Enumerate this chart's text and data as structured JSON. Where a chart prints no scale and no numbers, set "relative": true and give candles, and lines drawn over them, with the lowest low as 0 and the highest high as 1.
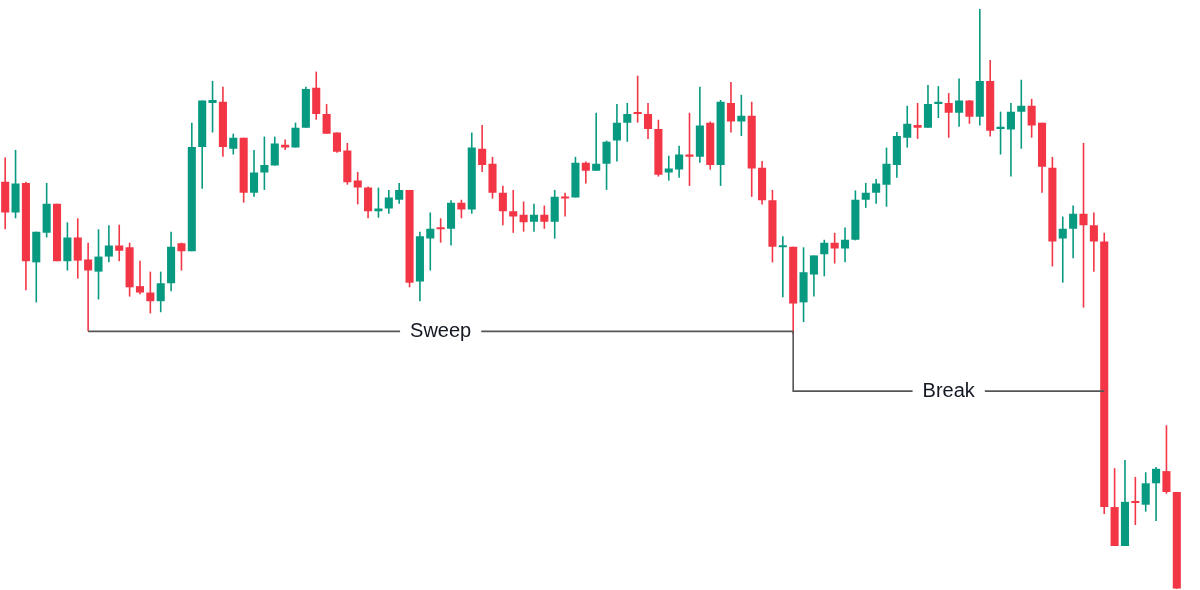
{
  "chart_data": {
    "type": "candlestick",
    "relative": true,
    "categories": [
      null,
      null,
      null,
      null,
      null,
      null,
      null,
      null,
      null,
      null,
      null,
      null,
      null,
      null,
      null,
      null,
      null,
      null,
      null,
      null,
      null,
      null,
      null,
      null,
      null,
      null,
      null,
      null,
      null,
      null,
      null,
      null,
      null,
      null,
      null,
      null,
      null,
      null,
      null,
      null,
      null,
      null,
      null,
      null,
      null,
      null,
      null,
      null,
      null,
      null,
      null,
      null,
      null,
      null,
      null,
      null,
      null,
      null,
      null,
      null,
      null,
      null,
      null,
      null,
      null,
      null,
      null,
      null,
      null,
      null,
      null,
      null,
      null,
      null,
      null,
      null,
      null,
      null,
      null,
      null,
      null,
      null,
      null,
      null,
      null,
      null,
      null,
      null,
      null,
      null,
      null,
      null,
      null,
      null,
      null,
      null,
      null,
      null,
      null,
      null,
      null,
      null,
      null,
      null,
      null,
      null,
      null,
      null,
      null,
      null,
      null,
      null,
      null,
      null
    ],
    "ohlc": [
      [
        0.702,
        0.744,
        0.62,
        0.649
      ],
      [
        0.649,
        0.757,
        0.639,
        0.699
      ],
      [
        0.7,
        0.702,
        0.515,
        0.565
      ],
      [
        0.563,
        0.616,
        0.494,
        0.616
      ],
      [
        0.614,
        0.7,
        0.606,
        0.664
      ],
      [
        0.664,
        0.664,
        0.565,
        0.565
      ],
      [
        0.565,
        0.632,
        0.549,
        0.606
      ],
      [
        0.606,
        0.639,
        0.535,
        0.566
      ],
      [
        0.568,
        0.597,
        0.444,
        0.549
      ],
      [
        0.547,
        0.62,
        0.499,
        0.573
      ],
      [
        0.573,
        0.627,
        0.563,
        0.592
      ],
      [
        0.592,
        0.628,
        0.565,
        0.583
      ],
      [
        0.589,
        0.597,
        0.504,
        0.52
      ],
      [
        0.522,
        0.566,
        0.508,
        0.511
      ],
      [
        0.511,
        0.547,
        0.475,
        0.496
      ],
      [
        0.496,
        0.547,
        0.477,
        0.527
      ],
      [
        0.527,
        0.616,
        0.513,
        0.59
      ],
      [
        0.596,
        0.597,
        0.549,
        0.582
      ],
      [
        0.582,
        0.804,
        0.582,
        0.762
      ],
      [
        0.762,
        0.842,
        0.69,
        0.842
      ],
      [
        0.838,
        0.876,
        0.787,
        0.843
      ],
      [
        0.84,
        0.866,
        0.745,
        0.762
      ],
      [
        0.759,
        0.785,
        0.749,
        0.778
      ],
      [
        0.778,
        0.778,
        0.666,
        0.683
      ],
      [
        0.683,
        0.757,
        0.676,
        0.718
      ],
      [
        0.718,
        0.78,
        0.688,
        0.731
      ],
      [
        0.73,
        0.78,
        0.73,
        0.768
      ],
      [
        0.766,
        0.775,
        0.757,
        0.761
      ],
      [
        0.761,
        0.804,
        0.761,
        0.795
      ],
      [
        0.795,
        0.866,
        0.795,
        0.862
      ],
      [
        0.864,
        0.892,
        0.809,
        0.819
      ],
      [
        0.819,
        0.836,
        0.785,
        0.785
      ],
      [
        0.787,
        0.787,
        0.752,
        0.754
      ],
      [
        0.756,
        0.769,
        0.697,
        0.701
      ],
      [
        0.704,
        0.719,
        0.663,
        0.692
      ],
      [
        0.692,
        0.694,
        0.639,
        0.651
      ],
      [
        0.651,
        0.692,
        0.64,
        0.656
      ],
      [
        0.656,
        0.688,
        0.647,
        0.675
      ],
      [
        0.671,
        0.7,
        0.664,
        0.688
      ],
      [
        0.688,
        0.688,
        0.52,
        0.528
      ],
      [
        0.53,
        0.616,
        0.496,
        0.608
      ],
      [
        0.604,
        0.649,
        0.549,
        0.621
      ],
      [
        0.623,
        0.639,
        0.597,
        0.62
      ],
      [
        0.621,
        0.67,
        0.592,
        0.666
      ],
      [
        0.666,
        0.671,
        0.639,
        0.654
      ],
      [
        0.654,
        0.787,
        0.647,
        0.761
      ],
      [
        0.759,
        0.8,
        0.719,
        0.731
      ],
      [
        0.733,
        0.745,
        0.673,
        0.683
      ],
      [
        0.683,
        0.695,
        0.627,
        0.651
      ],
      [
        0.651,
        0.688,
        0.614,
        0.642
      ],
      [
        0.645,
        0.668,
        0.616,
        0.632
      ],
      [
        0.633,
        0.664,
        0.616,
        0.645
      ],
      [
        0.645,
        0.661,
        0.621,
        0.633
      ],
      [
        0.633,
        0.688,
        0.604,
        0.676
      ],
      [
        0.676,
        0.683,
        0.642,
        0.673
      ],
      [
        0.675,
        0.745,
        0.675,
        0.735
      ],
      [
        0.735,
        0.737,
        0.699,
        0.721
      ],
      [
        0.721,
        0.821,
        0.721,
        0.733
      ],
      [
        0.733,
        0.773,
        0.688,
        0.771
      ],
      [
        0.773,
        0.836,
        0.737,
        0.804
      ],
      [
        0.804,
        0.838,
        0.771,
        0.819
      ],
      [
        0.821,
        0.885,
        0.804,
        0.819
      ],
      [
        0.819,
        0.838,
        0.776,
        0.793
      ],
      [
        0.793,
        0.809,
        0.711,
        0.714
      ],
      [
        0.718,
        0.747,
        0.704,
        0.725
      ],
      [
        0.723,
        0.764,
        0.709,
        0.749
      ],
      [
        0.749,
        0.821,
        0.695,
        0.745
      ],
      [
        0.745,
        0.866,
        0.735,
        0.799
      ],
      [
        0.804,
        0.806,
        0.723,
        0.731
      ],
      [
        0.731,
        0.843,
        0.695,
        0.84
      ],
      [
        0.838,
        0.874,
        0.787,
        0.806
      ],
      [
        0.806,
        0.852,
        0.781,
        0.816
      ],
      [
        0.816,
        0.84,
        0.676,
        0.725
      ],
      [
        0.726,
        0.738,
        0.663,
        0.67
      ],
      [
        0.67,
        0.688,
        0.563,
        0.59
      ],
      [
        0.589,
        0.608,
        0.503,
        0.592
      ],
      [
        0.59,
        0.59,
        0.439,
        0.492
      ],
      [
        0.494,
        0.589,
        0.46,
        0.546
      ],
      [
        0.542,
        0.575,
        0.504,
        0.575
      ],
      [
        0.577,
        0.602,
        0.539,
        0.597
      ],
      [
        0.597,
        0.614,
        0.561,
        0.587
      ],
      [
        0.587,
        0.623,
        0.563,
        0.602
      ],
      [
        0.602,
        0.687,
        0.601,
        0.671
      ],
      [
        0.671,
        0.7,
        0.657,
        0.683
      ],
      [
        0.683,
        0.707,
        0.664,
        0.699
      ],
      [
        0.697,
        0.761,
        0.659,
        0.733
      ],
      [
        0.731,
        0.788,
        0.709,
        0.781
      ],
      [
        0.778,
        0.833,
        0.761,
        0.802
      ],
      [
        0.8,
        0.838,
        0.776,
        0.795
      ],
      [
        0.795,
        0.869,
        0.795,
        0.836
      ],
      [
        0.836,
        0.867,
        0.812,
        0.84
      ],
      [
        0.838,
        0.855,
        0.778,
        0.821
      ],
      [
        0.821,
        0.88,
        0.797,
        0.842
      ],
      [
        0.842,
        0.843,
        0.802,
        0.814
      ],
      [
        0.814,
        1,
        0.799,
        0.876
      ],
      [
        0.876,
        0.912,
        0.78,
        0.79
      ],
      [
        0.793,
        0.823,
        0.749,
        0.797
      ],
      [
        0.792,
        0.838,
        0.711,
        0.823
      ],
      [
        0.823,
        0.878,
        0.759,
        0.833
      ],
      [
        0.833,
        0.845,
        0.778,
        0.799
      ],
      [
        0.804,
        0.804,
        0.683,
        0.728
      ],
      [
        0.726,
        0.745,
        0.556,
        0.599
      ],
      [
        0.604,
        0.642,
        0.528,
        0.621
      ],
      [
        0.621,
        0.661,
        0.57,
        0.647
      ],
      [
        0.647,
        0.769,
        0.485,
        0.627
      ],
      [
        0.627,
        0.649,
        0.547,
        0.599
      ],
      [
        0.599,
        0.614,
        0.129,
        0.141
      ],
      [
        0.141,
        0.208,
        0.074,
        0.074
      ],
      [
        0.074,
        0.222,
        0.074,
        0.15
      ],
      [
        0.15,
        0.193,
        0.11,
        0.148
      ],
      [
        0.145,
        0.201,
        0.133,
        0.182
      ],
      [
        0.182,
        0.21,
        0.117,
        0.207
      ],
      [
        0.203,
        0.282,
        0.164,
        0.167
      ],
      [
        0.167,
        0.167,
        0,
        0
      ]
    ],
    "colors": [
      "#f23645",
      "#089981",
      "#f23645",
      "#089981",
      "#089981",
      "#f23645",
      "#089981",
      "#f23645",
      "#f23645",
      "#089981",
      "#089981",
      "#f23645",
      "#f23645",
      "#f23645",
      "#f23645",
      "#089981",
      "#089981",
      "#f23645",
      "#089981",
      "#089981",
      "#089981",
      "#f23645",
      "#089981",
      "#f23645",
      "#089981",
      "#089981",
      "#089981",
      "#f23645",
      "#089981",
      "#089981",
      "#f23645",
      "#f23645",
      "#f23645",
      "#f23645",
      "#f23645",
      "#f23645",
      "#089981",
      "#089981",
      "#089981",
      "#f23645",
      "#089981",
      "#089981",
      "#f23645",
      "#089981",
      "#f23645",
      "#089981",
      "#f23645",
      "#f23645",
      "#f23645",
      "#f23645",
      "#f23645",
      "#089981",
      "#f23645",
      "#089981",
      "#f23645",
      "#089981",
      "#f23645",
      "#089981",
      "#089981",
      "#089981",
      "#089981",
      "#f23645",
      "#f23645",
      "#f23645",
      "#089981",
      "#089981",
      "#f23645",
      "#089981",
      "#f23645",
      "#089981",
      "#f23645",
      "#089981",
      "#f23645",
      "#f23645",
      "#f23645",
      "#089981",
      "#f23645",
      "#089981",
      "#089981",
      "#089981",
      "#f23645",
      "#089981",
      "#089981",
      "#089981",
      "#089981",
      "#089981",
      "#089981",
      "#089981",
      "#f23645",
      "#089981",
      "#089981",
      "#f23645",
      "#089981",
      "#f23645",
      "#089981",
      "#f23645",
      "#089981",
      "#089981",
      "#089981",
      "#f23645",
      "#f23645",
      "#f23645",
      "#089981",
      "#089981",
      "#f23645",
      "#f23645",
      "#f23645",
      "#f23645",
      "#089981",
      "#f23645",
      "#089981",
      "#089981",
      "#f23645",
      "#f23645"
    ],
    "ref_lines": [
      {
        "axis": "y",
        "value": 0.444,
        "label": "Sweep"
      },
      {
        "axis": "y",
        "value": 0.341,
        "label": "Break"
      }
    ]
  }
}
